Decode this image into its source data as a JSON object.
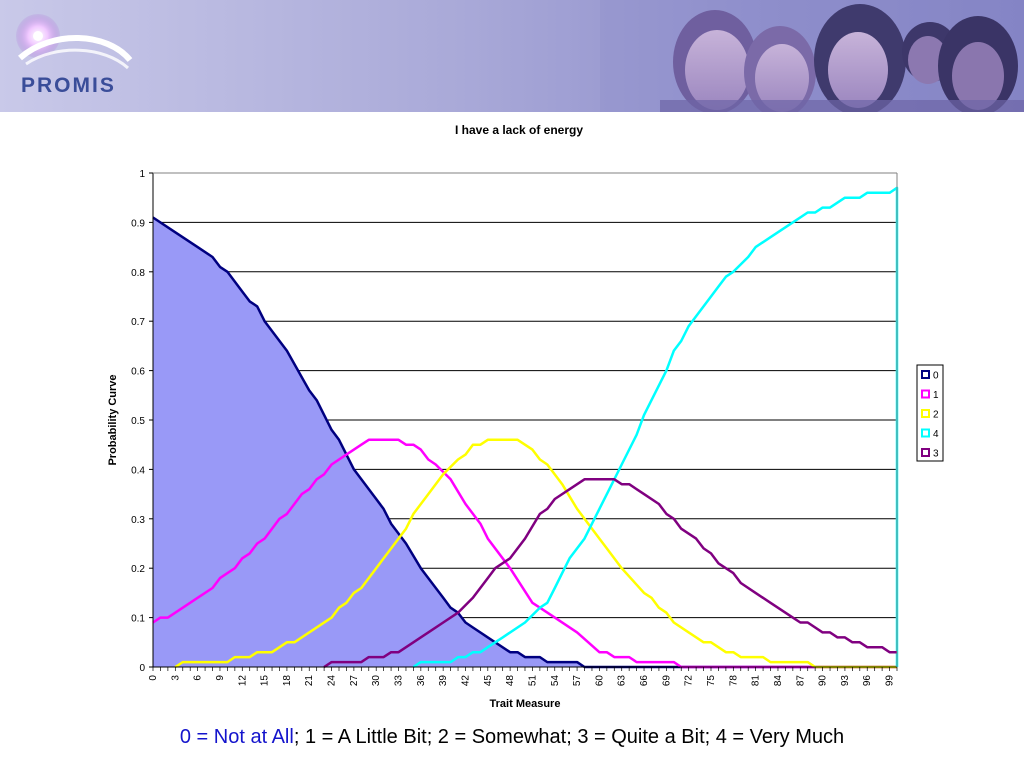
{
  "brand": {
    "logo_text": "PROMIS",
    "logo_color": "#3a4d99"
  },
  "banner": {
    "photo_icon": "people-photo-icon"
  },
  "footnote": {
    "highlight": "0 = Not at All",
    "rest": "; 1 = A Little Bit; 2 = Somewhat; 3 = Quite a Bit; 4 = Very Much",
    "highlight_color": "#1414cc"
  },
  "chart_data": {
    "type": "line",
    "title": "I have a lack of energy",
    "xlabel": "Trait Measure",
    "ylabel": "Probability Curve",
    "xlim": [
      0,
      100
    ],
    "ylim": [
      0,
      1
    ],
    "x_ticks": [
      "0",
      "3",
      "6",
      "9",
      "12",
      "15",
      "18",
      "21",
      "24",
      "27",
      "30",
      "33",
      "36",
      "39",
      "42",
      "45",
      "48",
      "51",
      "54",
      "57",
      "60",
      "63",
      "66",
      "69",
      "72",
      "75",
      "78",
      "81",
      "84",
      "87",
      "90",
      "93",
      "96",
      "99"
    ],
    "y_ticks": [
      "0",
      "0.1",
      "0.2",
      "0.3",
      "0.4",
      "0.5",
      "0.6",
      "0.7",
      "0.8",
      "0.9",
      "1"
    ],
    "grid": true,
    "legend_position": "right",
    "series": [
      {
        "name": "0",
        "color": "#000080",
        "fill": "#9999f7",
        "points": [
          [
            0,
            0.91
          ],
          [
            3,
            0.88
          ],
          [
            6,
            0.85
          ],
          [
            8,
            0.83
          ],
          [
            9,
            0.81
          ],
          [
            10,
            0.8
          ],
          [
            12,
            0.76
          ],
          [
            13,
            0.74
          ],
          [
            14,
            0.73
          ],
          [
            15,
            0.7
          ],
          [
            18,
            0.64
          ],
          [
            21,
            0.56
          ],
          [
            22,
            0.54
          ],
          [
            24,
            0.48
          ],
          [
            25,
            0.46
          ],
          [
            27,
            0.4
          ],
          [
            30,
            0.34
          ],
          [
            31,
            0.32
          ],
          [
            32,
            0.29
          ],
          [
            34,
            0.25
          ],
          [
            36,
            0.2
          ],
          [
            39,
            0.14
          ],
          [
            40,
            0.12
          ],
          [
            41,
            0.11
          ],
          [
            42,
            0.09
          ],
          [
            43,
            0.08
          ],
          [
            45,
            0.06
          ],
          [
            48,
            0.03
          ],
          [
            49,
            0.03
          ],
          [
            50,
            0.02
          ],
          [
            52,
            0.02
          ],
          [
            53,
            0.01
          ],
          [
            57,
            0.01
          ],
          [
            58,
            0.0
          ],
          [
            100,
            0.0
          ]
        ]
      },
      {
        "name": "1",
        "color": "#ff00ff",
        "points": [
          [
            0,
            0.09
          ],
          [
            1,
            0.1
          ],
          [
            2,
            0.1
          ],
          [
            4,
            0.12
          ],
          [
            6,
            0.14
          ],
          [
            8,
            0.16
          ],
          [
            9,
            0.18
          ],
          [
            11,
            0.2
          ],
          [
            12,
            0.22
          ],
          [
            13,
            0.23
          ],
          [
            14,
            0.25
          ],
          [
            15,
            0.26
          ],
          [
            17,
            0.3
          ],
          [
            18,
            0.31
          ],
          [
            20,
            0.35
          ],
          [
            21,
            0.36
          ],
          [
            22,
            0.38
          ],
          [
            23,
            0.39
          ],
          [
            24,
            0.41
          ],
          [
            26,
            0.43
          ],
          [
            28,
            0.45
          ],
          [
            29,
            0.46
          ],
          [
            33,
            0.46
          ],
          [
            34,
            0.45
          ],
          [
            35,
            0.45
          ],
          [
            36,
            0.44
          ],
          [
            37,
            0.42
          ],
          [
            38,
            0.41
          ],
          [
            40,
            0.38
          ],
          [
            42,
            0.33
          ],
          [
            44,
            0.29
          ],
          [
            45,
            0.26
          ],
          [
            48,
            0.2
          ],
          [
            51,
            0.13
          ],
          [
            52,
            0.12
          ],
          [
            54,
            0.1
          ],
          [
            57,
            0.07
          ],
          [
            60,
            0.03
          ],
          [
            61,
            0.03
          ],
          [
            62,
            0.02
          ],
          [
            64,
            0.02
          ],
          [
            65,
            0.01
          ],
          [
            70,
            0.01
          ],
          [
            71,
            0.0
          ],
          [
            100,
            0.0
          ]
        ]
      },
      {
        "name": "2",
        "color": "#ffff00",
        "points": [
          [
            3,
            0.0
          ],
          [
            4,
            0.01
          ],
          [
            10,
            0.01
          ],
          [
            11,
            0.02
          ],
          [
            13,
            0.02
          ],
          [
            14,
            0.03
          ],
          [
            16,
            0.03
          ],
          [
            18,
            0.05
          ],
          [
            19,
            0.05
          ],
          [
            21,
            0.07
          ],
          [
            24,
            0.1
          ],
          [
            25,
            0.12
          ],
          [
            26,
            0.13
          ],
          [
            27,
            0.15
          ],
          [
            28,
            0.16
          ],
          [
            30,
            0.2
          ],
          [
            33,
            0.26
          ],
          [
            34,
            0.28
          ],
          [
            35,
            0.31
          ],
          [
            37,
            0.35
          ],
          [
            39,
            0.39
          ],
          [
            41,
            0.42
          ],
          [
            42,
            0.43
          ],
          [
            43,
            0.45
          ],
          [
            44,
            0.45
          ],
          [
            45,
            0.46
          ],
          [
            49,
            0.46
          ],
          [
            50,
            0.45
          ],
          [
            51,
            0.44
          ],
          [
            52,
            0.42
          ],
          [
            53,
            0.41
          ],
          [
            55,
            0.37
          ],
          [
            57,
            0.32
          ],
          [
            60,
            0.26
          ],
          [
            61,
            0.24
          ],
          [
            63,
            0.2
          ],
          [
            66,
            0.15
          ],
          [
            67,
            0.14
          ],
          [
            68,
            0.12
          ],
          [
            69,
            0.11
          ],
          [
            70,
            0.09
          ],
          [
            72,
            0.07
          ],
          [
            74,
            0.05
          ],
          [
            75,
            0.05
          ],
          [
            77,
            0.03
          ],
          [
            78,
            0.03
          ],
          [
            79,
            0.02
          ],
          [
            82,
            0.02
          ],
          [
            83,
            0.01
          ],
          [
            88,
            0.01
          ],
          [
            89,
            0.0
          ],
          [
            100,
            0.0
          ]
        ]
      },
      {
        "name": "4",
        "color": "#00ffff",
        "points": [
          [
            35,
            0.0
          ],
          [
            36,
            0.01
          ],
          [
            40,
            0.01
          ],
          [
            41,
            0.02
          ],
          [
            42,
            0.02
          ],
          [
            43,
            0.03
          ],
          [
            44,
            0.03
          ],
          [
            45,
            0.04
          ],
          [
            47,
            0.06
          ],
          [
            50,
            0.09
          ],
          [
            52,
            0.12
          ],
          [
            53,
            0.13
          ],
          [
            54,
            0.16
          ],
          [
            55,
            0.19
          ],
          [
            56,
            0.22
          ],
          [
            58,
            0.26
          ],
          [
            60,
            0.32
          ],
          [
            62,
            0.38
          ],
          [
            63,
            0.41
          ],
          [
            65,
            0.47
          ],
          [
            66,
            0.51
          ],
          [
            68,
            0.57
          ],
          [
            69,
            0.6
          ],
          [
            70,
            0.64
          ],
          [
            71,
            0.66
          ],
          [
            72,
            0.69
          ],
          [
            73,
            0.71
          ],
          [
            75,
            0.75
          ],
          [
            76,
            0.77
          ],
          [
            77,
            0.79
          ],
          [
            78,
            0.8
          ],
          [
            80,
            0.83
          ],
          [
            81,
            0.85
          ],
          [
            83,
            0.87
          ],
          [
            85,
            0.89
          ],
          [
            86,
            0.9
          ],
          [
            88,
            0.92
          ],
          [
            89,
            0.92
          ],
          [
            90,
            0.93
          ],
          [
            91,
            0.93
          ],
          [
            93,
            0.95
          ],
          [
            95,
            0.95
          ],
          [
            96,
            0.96
          ],
          [
            99,
            0.96
          ],
          [
            100,
            0.97
          ],
          [
            100,
            0.0
          ]
        ]
      },
      {
        "name": "3",
        "color": "#800080",
        "points": [
          [
            23,
            0.0
          ],
          [
            24,
            0.01
          ],
          [
            28,
            0.01
          ],
          [
            29,
            0.02
          ],
          [
            31,
            0.02
          ],
          [
            32,
            0.03
          ],
          [
            33,
            0.03
          ],
          [
            35,
            0.05
          ],
          [
            37,
            0.07
          ],
          [
            39,
            0.09
          ],
          [
            41,
            0.11
          ],
          [
            43,
            0.14
          ],
          [
            45,
            0.18
          ],
          [
            46,
            0.2
          ],
          [
            48,
            0.22
          ],
          [
            50,
            0.26
          ],
          [
            52,
            0.31
          ],
          [
            53,
            0.32
          ],
          [
            54,
            0.34
          ],
          [
            56,
            0.36
          ],
          [
            58,
            0.38
          ],
          [
            62,
            0.38
          ],
          [
            63,
            0.37
          ],
          [
            64,
            0.37
          ],
          [
            66,
            0.35
          ],
          [
            68,
            0.33
          ],
          [
            69,
            0.31
          ],
          [
            70,
            0.3
          ],
          [
            71,
            0.28
          ],
          [
            73,
            0.26
          ],
          [
            74,
            0.24
          ],
          [
            75,
            0.23
          ],
          [
            76,
            0.21
          ],
          [
            78,
            0.19
          ],
          [
            79,
            0.17
          ],
          [
            81,
            0.15
          ],
          [
            83,
            0.13
          ],
          [
            86,
            0.1
          ],
          [
            87,
            0.09
          ],
          [
            88,
            0.09
          ],
          [
            90,
            0.07
          ],
          [
            91,
            0.07
          ],
          [
            92,
            0.06
          ],
          [
            93,
            0.06
          ],
          [
            94,
            0.05
          ],
          [
            95,
            0.05
          ],
          [
            96,
            0.04
          ],
          [
            98,
            0.04
          ],
          [
            99,
            0.03
          ],
          [
            100,
            0.03
          ]
        ]
      }
    ]
  }
}
